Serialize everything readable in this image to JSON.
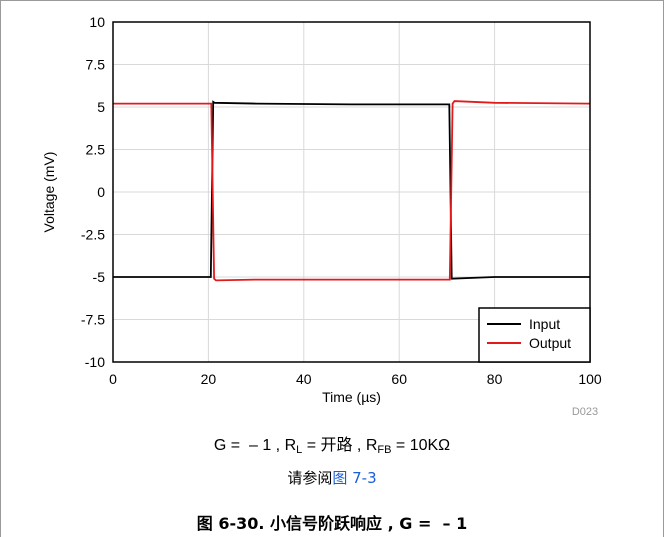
{
  "chart_data": {
    "type": "line",
    "xlabel": "Time (µs)",
    "ylabel": "Voltage (mV)",
    "xlim": [
      0,
      100
    ],
    "ylim": [
      -10,
      10
    ],
    "xticks": [
      "0",
      "20",
      "40",
      "60",
      "80",
      "100"
    ],
    "yticks": [
      "10",
      "7.5",
      "5",
      "2.5",
      "0",
      "-2.5",
      "-5",
      "-7.5",
      "-10"
    ],
    "grid": true,
    "legend_position": "bottom-right",
    "watermark": "D023",
    "series": [
      {
        "name": "Input",
        "color": "#000000",
        "x": [
          0,
          20.5,
          21.0,
          21.3,
          30,
          50,
          70.5,
          71.0,
          80,
          100
        ],
        "y": [
          -5.0,
          -5.0,
          5.3,
          5.25,
          5.2,
          5.15,
          5.15,
          -5.1,
          -5.0,
          -5.0
        ]
      },
      {
        "name": "Output",
        "color": "#e31a1c",
        "x": [
          0,
          20.6,
          21.2,
          21.6,
          30,
          50,
          70.6,
          71.2,
          71.6,
          80,
          100
        ],
        "y": [
          5.2,
          5.2,
          -5.1,
          -5.2,
          -5.15,
          -5.15,
          -5.15,
          5.2,
          5.35,
          5.25,
          5.2
        ]
      }
    ]
  },
  "caption": {
    "g_part": "G =  – 1 , R",
    "rl_sub": "L",
    "mid_part": " = 开路 , R",
    "rfb_sub": "FB",
    "end_part": " = 10KΩ",
    "see_text": "请参阅",
    "see_link": "图 7-3"
  },
  "figure_title": "图 6-30. 小信号阶跃响应 , G =  – 1"
}
